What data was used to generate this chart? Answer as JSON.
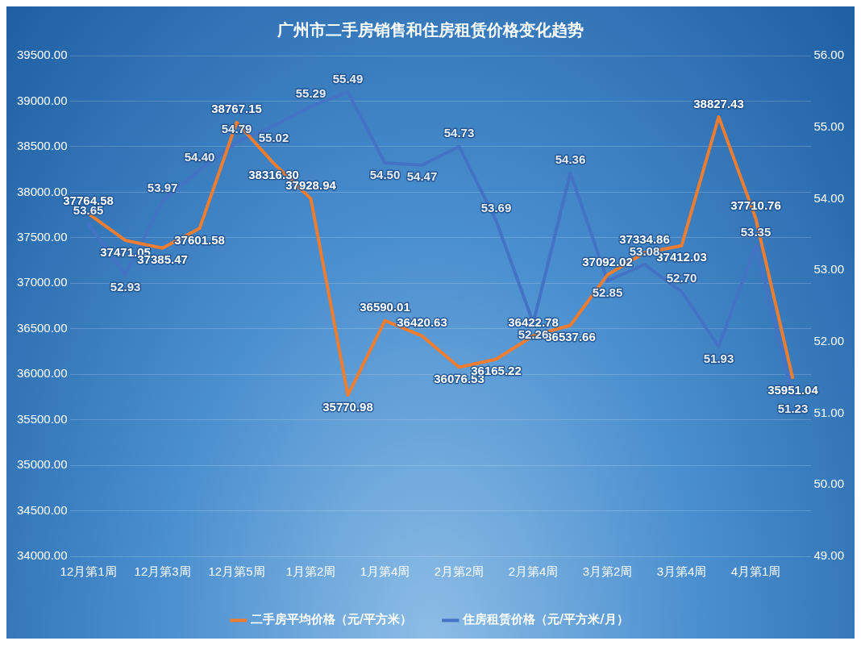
{
  "chart_data": {
    "type": "line",
    "title": "广州市二手房销售和住房租赁价格变化趋势",
    "categories": [
      "12月第1周",
      null,
      "12月第3周",
      null,
      "12月第5周",
      null,
      "1月第2周",
      null,
      "1月第4周",
      null,
      "2月第2周",
      null,
      "2月第4周",
      null,
      "3月第2周",
      null,
      "3月第4周",
      null,
      "4月第1周",
      null
    ],
    "series": [
      {
        "name": "二手房平均价格（元/平方米）",
        "color": "#ed7d31",
        "values": [
          37764.58,
          37471.05,
          37385.47,
          37601.58,
          38767.15,
          38316.3,
          37928.94,
          35770.98,
          36590.01,
          36420.63,
          36076.53,
          36165.22,
          36422.78,
          36537.66,
          37092.02,
          37334.86,
          37412.03,
          38827.43,
          37710.76,
          35951.04
        ],
        "value_labels": [
          "37764.58",
          "37471.05",
          "37385.47",
          "37601.58",
          "38767.15",
          "38316.30",
          "37928.94",
          "35770.98",
          "36590.01",
          "36420.63",
          "36076.53",
          "36165.22",
          "36422.78",
          "36537.66",
          "37092.02",
          "37334.86",
          "37412.03",
          "38827.43",
          "37710.76",
          "35951.04"
        ]
      },
      {
        "name": "住房租赁价格（元/平方米/月）",
        "color": "#4472c4",
        "axis": "y2",
        "values": [
          53.65,
          52.93,
          53.97,
          54.4,
          54.79,
          55.02,
          55.29,
          55.49,
          54.5,
          54.47,
          54.73,
          53.69,
          52.26,
          54.36,
          52.85,
          53.08,
          52.7,
          51.93,
          53.35,
          51.23
        ],
        "value_labels": [
          "53.65",
          "52.93",
          "53.97",
          "54.40",
          "54.79",
          "55.02",
          "55.29",
          "55.49",
          "54.50",
          "54.47",
          "54.73",
          "53.69",
          "52.26",
          "54.36",
          "52.85",
          "53.08",
          "52.70",
          "51.93",
          "53.35",
          "51.23"
        ]
      }
    ],
    "ylim": [
      34000,
      39500
    ],
    "yticks": [
      {
        "value": 34000,
        "label": "34000.00"
      },
      {
        "value": 34500,
        "label": "34500.00"
      },
      {
        "value": 35000,
        "label": "35000.00"
      },
      {
        "value": 35500,
        "label": "35500.00"
      },
      {
        "value": 36000,
        "label": "36000.00"
      },
      {
        "value": 36500,
        "label": "36500.00"
      },
      {
        "value": 37000,
        "label": "37000.00"
      },
      {
        "value": 37500,
        "label": "37500.00"
      },
      {
        "value": 38000,
        "label": "38000.00"
      },
      {
        "value": 38500,
        "label": "38500.00"
      },
      {
        "value": 39000,
        "label": "39000.00"
      },
      {
        "value": 39500,
        "label": "39500.00"
      }
    ],
    "y2lim": [
      49,
      56
    ],
    "y2ticks": [
      {
        "value": 49,
        "label": "49.00"
      },
      {
        "value": 50,
        "label": "50.00"
      },
      {
        "value": 51,
        "label": "51.00"
      },
      {
        "value": 52,
        "label": "52.00"
      },
      {
        "value": 53,
        "label": "53.00"
      },
      {
        "value": 54,
        "label": "54.00"
      },
      {
        "value": 55,
        "label": "55.00"
      },
      {
        "value": 56,
        "label": "56.00"
      }
    ],
    "grid": "y",
    "legend": "bottom",
    "marker": "none",
    "line_style": "solid"
  }
}
